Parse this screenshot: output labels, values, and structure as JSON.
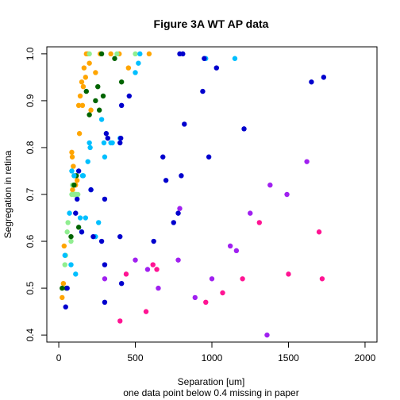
{
  "chart_data": {
    "type": "scatter",
    "title": "Figure 3A WT AP data",
    "xlabel": "Separation [um]",
    "xlabel_sub": "one data point below 0.4 missing in paper",
    "ylabel": "Segregation in retina",
    "xlim": [
      -78,
      2078
    ],
    "ylim": [
      0.385,
      1.015
    ],
    "x_ticks": [
      0,
      500,
      1000,
      1500,
      2000
    ],
    "x_tick_labels": [
      "0",
      "500",
      "1000",
      "1500",
      "2000"
    ],
    "y_ticks": [
      0.4,
      0.5,
      0.6,
      0.7,
      0.8,
      0.9,
      1.0
    ],
    "y_tick_labels": [
      "0.4",
      "0.5",
      "0.6",
      "0.7",
      "0.8",
      "0.9",
      "1.0"
    ],
    "grid": false,
    "legend": "none",
    "colors": {
      "orange": "#FFA500",
      "lightgreen": "#90EE90",
      "darkgreen": "#006400",
      "deepskyblue": "#00BFFF",
      "blue": "#0000CD",
      "purple": "#A020F0",
      "deeppink": "#FF1493"
    },
    "series": [
      {
        "color": "orange",
        "points": [
          [
            22,
            0.48
          ],
          [
            30,
            0.51
          ],
          [
            35,
            0.59
          ],
          [
            85,
            0.79
          ],
          [
            88,
            0.78
          ],
          [
            90,
            0.71
          ],
          [
            95,
            0.76
          ],
          [
            100,
            0.74
          ],
          [
            105,
            0.72
          ],
          [
            110,
            0.72
          ],
          [
            120,
            0.73
          ],
          [
            130,
            0.89
          ],
          [
            135,
            0.83
          ],
          [
            140,
            0.91
          ],
          [
            150,
            0.94
          ],
          [
            155,
            0.89
          ],
          [
            160,
            0.93
          ],
          [
            165,
            0.97
          ],
          [
            175,
            0.95
          ],
          [
            180,
            1.0
          ],
          [
            190,
            1.0
          ],
          [
            200,
            0.98
          ],
          [
            210,
            0.88
          ],
          [
            240,
            0.96
          ],
          [
            270,
            1.0
          ],
          [
            340,
            1.0
          ],
          [
            395,
            1.0
          ],
          [
            455,
            0.97
          ],
          [
            590,
            1.0
          ]
        ]
      },
      {
        "color": "lightgreen",
        "points": [
          [
            40,
            0.55
          ],
          [
            45,
            0.57
          ],
          [
            55,
            0.62
          ],
          [
            60,
            0.64
          ],
          [
            80,
            0.6
          ],
          [
            85,
            0.7
          ],
          [
            90,
            0.72
          ],
          [
            95,
            0.7
          ],
          [
            100,
            0.7
          ],
          [
            105,
            0.7
          ],
          [
            110,
            0.7
          ],
          [
            115,
            0.7
          ],
          [
            125,
            0.7
          ],
          [
            200,
            1.0
          ],
          [
            380,
            1.0
          ],
          [
            500,
            1.0
          ]
        ]
      },
      {
        "color": "darkgreen",
        "points": [
          [
            22,
            0.5
          ],
          [
            50,
            0.5
          ],
          [
            80,
            0.61
          ],
          [
            100,
            0.72
          ],
          [
            115,
            0.74
          ],
          [
            130,
            0.63
          ],
          [
            180,
            0.92
          ],
          [
            200,
            0.87
          ],
          [
            240,
            0.9
          ],
          [
            255,
            0.93
          ],
          [
            265,
            0.88
          ],
          [
            280,
            1.0
          ],
          [
            290,
            0.91
          ],
          [
            365,
            0.99
          ],
          [
            410,
            0.94
          ]
        ]
      },
      {
        "color": "deepskyblue",
        "points": [
          [
            40,
            0.57
          ],
          [
            70,
            0.66
          ],
          [
            80,
            0.55
          ],
          [
            85,
            0.75
          ],
          [
            100,
            0.74
          ],
          [
            110,
            0.53
          ],
          [
            140,
            0.65
          ],
          [
            150,
            0.62
          ],
          [
            155,
            0.74
          ],
          [
            160,
            0.74
          ],
          [
            175,
            0.65
          ],
          [
            190,
            0.77
          ],
          [
            200,
            0.81
          ],
          [
            205,
            0.8
          ],
          [
            210,
            0.71
          ],
          [
            240,
            0.61
          ],
          [
            260,
            0.64
          ],
          [
            280,
            0.86
          ],
          [
            295,
            0.81
          ],
          [
            300,
            0.78
          ],
          [
            340,
            0.81
          ],
          [
            350,
            0.81
          ],
          [
            400,
            0.82
          ],
          [
            500,
            0.96
          ],
          [
            520,
            0.98
          ],
          [
            530,
            1.0
          ],
          [
            960,
            0.99
          ],
          [
            1150,
            0.99
          ]
        ]
      },
      {
        "color": "blue",
        "points": [
          [
            45,
            0.46
          ],
          [
            55,
            0.5
          ],
          [
            110,
            0.66
          ],
          [
            120,
            0.69
          ],
          [
            130,
            0.75
          ],
          [
            150,
            0.62
          ],
          [
            210,
            0.71
          ],
          [
            225,
            0.61
          ],
          [
            280,
            0.6
          ],
          [
            300,
            0.69
          ],
          [
            300,
            0.55
          ],
          [
            300,
            0.47
          ],
          [
            310,
            0.83
          ],
          [
            320,
            0.82
          ],
          [
            400,
            0.61
          ],
          [
            400,
            0.81
          ],
          [
            405,
            0.82
          ],
          [
            410,
            0.89
          ],
          [
            410,
            0.51
          ],
          [
            460,
            0.91
          ],
          [
            620,
            0.6
          ],
          [
            680,
            0.78
          ],
          [
            700,
            0.73
          ],
          [
            750,
            0.64
          ],
          [
            780,
            0.66
          ],
          [
            790,
            1.0
          ],
          [
            800,
            0.74
          ],
          [
            810,
            1.0
          ],
          [
            820,
            0.85
          ],
          [
            940,
            0.92
          ],
          [
            950,
            0.99
          ],
          [
            980,
            0.78
          ],
          [
            1030,
            0.97
          ],
          [
            1210,
            0.84
          ],
          [
            1650,
            0.94
          ],
          [
            1730,
            0.95
          ]
        ]
      },
      {
        "color": "purple",
        "points": [
          [
            300,
            0.52
          ],
          [
            500,
            0.56
          ],
          [
            580,
            0.54
          ],
          [
            650,
            0.5
          ],
          [
            780,
            0.56
          ],
          [
            790,
            0.67
          ],
          [
            890,
            0.48
          ],
          [
            1000,
            0.52
          ],
          [
            1120,
            0.59
          ],
          [
            1160,
            0.58
          ],
          [
            1250,
            0.66
          ],
          [
            1360,
            0.4
          ],
          [
            1380,
            0.72
          ],
          [
            1490,
            0.7
          ],
          [
            1620,
            0.77
          ]
        ]
      },
      {
        "color": "deeppink",
        "points": [
          [
            400,
            0.43
          ],
          [
            440,
            0.53
          ],
          [
            570,
            0.45
          ],
          [
            615,
            0.55
          ],
          [
            640,
            0.54
          ],
          [
            960,
            0.47
          ],
          [
            1070,
            0.49
          ],
          [
            1200,
            0.52
          ],
          [
            1310,
            0.64
          ],
          [
            1500,
            0.53
          ],
          [
            1700,
            0.62
          ],
          [
            1720,
            0.52
          ]
        ]
      }
    ]
  }
}
